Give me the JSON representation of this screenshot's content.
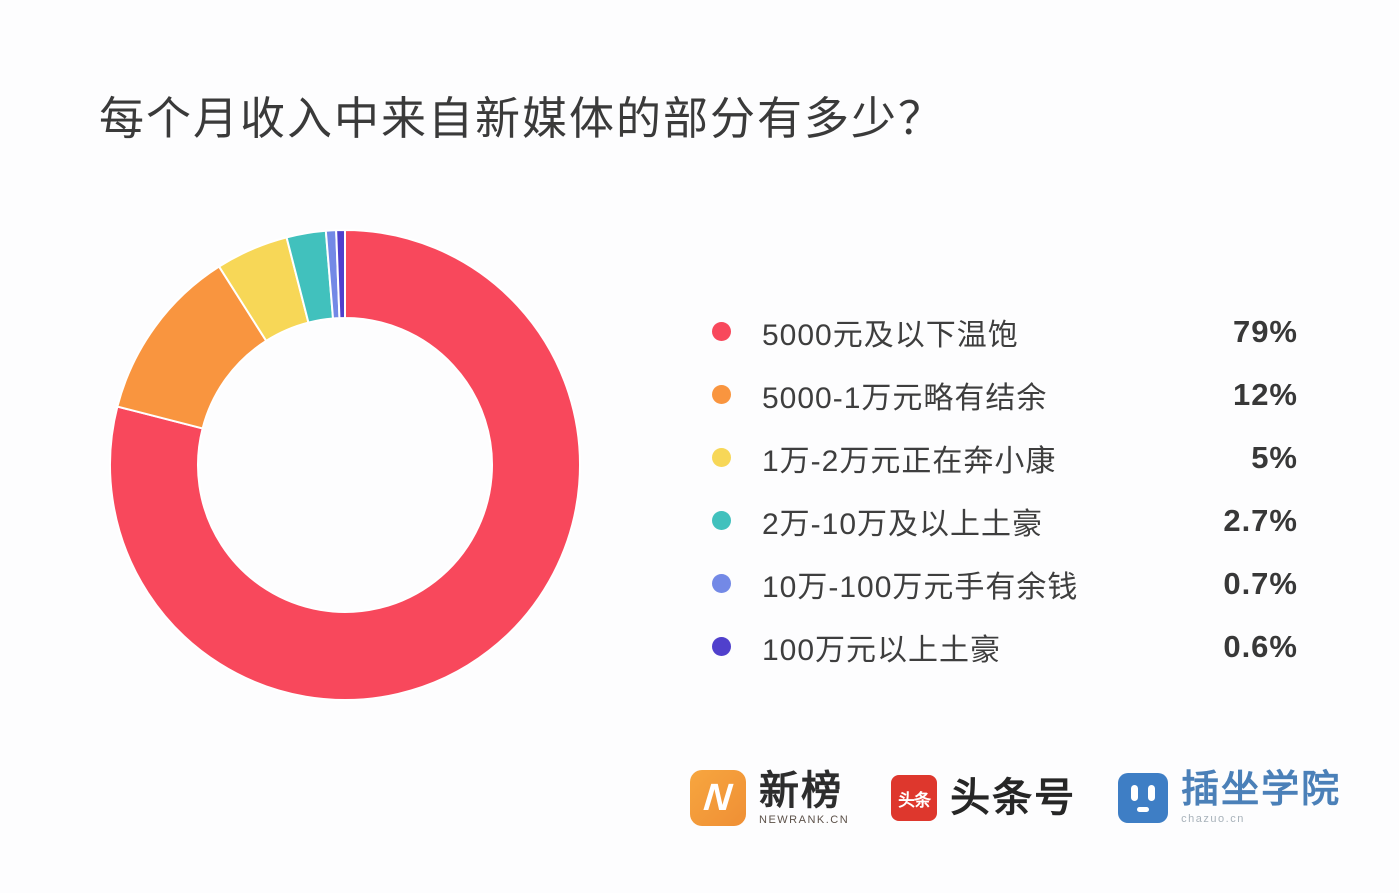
{
  "title": "每个月收入中来自新媒体的部分有多少？",
  "chart_data": {
    "type": "pie",
    "donut": true,
    "title": "每个月收入中来自新媒体的部分有多少？",
    "unit": "%",
    "start_angle_deg": 0,
    "direction": "clockwise",
    "legend_position": "right",
    "items": [
      {
        "label": "5000元及以下温饱",
        "value": 79,
        "value_label": "79%",
        "color": "#F8485C"
      },
      {
        "label": "5000-1万元略有结余",
        "value": 12,
        "value_label": "12%",
        "color": "#F9953F"
      },
      {
        "label": "1万-2万元正在奔小康",
        "value": 5,
        "value_label": "5%",
        "color": "#F7D757"
      },
      {
        "label": "2万-10万及以上土豪",
        "value": 2.7,
        "value_label": "2.7%",
        "color": "#41C1BD"
      },
      {
        "label": "10万-100万元手有余钱",
        "value": 0.7,
        "value_label": "0.7%",
        "color": "#7389E6"
      },
      {
        "label": "100万元以上土豪",
        "value": 0.6,
        "value_label": "0.6%",
        "color": "#5040CC"
      }
    ]
  },
  "footer": {
    "logos": [
      {
        "name": "newrank",
        "badge_letter": "N",
        "wordmark": "新榜",
        "subtext": "NEWRANK.CN",
        "brand_color": "#F49D3E"
      },
      {
        "name": "toutiao",
        "badge_text": "头条",
        "wordmark": "头条号",
        "brand_color": "#DE372D"
      },
      {
        "name": "chazuo",
        "wordmark": "插坐学院",
        "subtext": "chazuo.cn",
        "brand_color": "#3E7EC5"
      }
    ]
  }
}
